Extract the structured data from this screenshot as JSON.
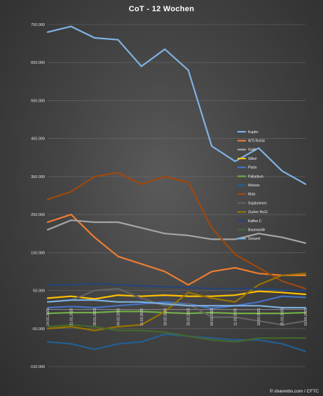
{
  "chart_data": {
    "type": "line",
    "title": "CoT - 12 Wochen",
    "xlabel": "",
    "ylabel": "",
    "ylim": [
      -150000,
      750000
    ],
    "yticks": [
      "-150.000",
      "-50.000",
      "50.000",
      "150.000",
      "250.000",
      "350.000",
      "450.000",
      "550.000",
      "650.000",
      "750.000"
    ],
    "ytick_values": [
      -150000,
      -50000,
      50000,
      150000,
      250000,
      350000,
      450000,
      550000,
      650000,
      750000
    ],
    "grid": true,
    "legend_position": "right",
    "categories": [
      "14.01.2025",
      "21.01.2025",
      "28.01.2025",
      "04.02.2025",
      "11.02.2025",
      "18.02.2025",
      "25.02.2025",
      "04.03.2025",
      "11.03.2025",
      "18.03.2025",
      "25.03.2025",
      "01.04.2025"
    ],
    "series": [
      {
        "name": "Kupfer",
        "color": "#7fb2e5",
        "values": [
          730000,
          745000,
          715000,
          710000,
          640000,
          685000,
          630000,
          430000,
          390000,
          425000,
          365000,
          330000
        ]
      },
      {
        "name": "WTI Rohöl",
        "color": "#ed7d31",
        "values": [
          230000,
          250000,
          190000,
          140000,
          120000,
          100000,
          65000,
          100000,
          110000,
          95000,
          90000,
          90000
        ]
      },
      {
        "name": "Gold",
        "color": "#a5a5a5",
        "values": [
          210000,
          235000,
          230000,
          230000,
          215000,
          200000,
          195000,
          185000,
          185000,
          200000,
          190000,
          175000
        ]
      },
      {
        "name": "Silber",
        "color": "#ffc000",
        "values": [
          30000,
          35000,
          28000,
          38000,
          35000,
          38000,
          35000,
          35000,
          38000,
          48000,
          45000,
          40000
        ]
      },
      {
        "name": "Platin",
        "color": "#4472c4",
        "values": [
          5000,
          8000,
          5000,
          10000,
          15000,
          20000,
          15000,
          3000,
          10000,
          20000,
          35000,
          32000
        ]
      },
      {
        "name": "Palladium",
        "color": "#70ad47",
        "values": [
          -10000,
          -8000,
          -8000,
          -5000,
          -5000,
          -8000,
          -10000,
          -8000,
          -10000,
          -10000,
          -10000,
          -8000
        ]
      },
      {
        "name": "Weizen",
        "color": "#255e91",
        "values": [
          -85000,
          -90000,
          -105000,
          -90000,
          -85000,
          -65000,
          -70000,
          -75000,
          -80000,
          -80000,
          -90000,
          -110000
        ]
      },
      {
        "name": "Mais",
        "color": "#9e480e",
        "values": [
          290000,
          310000,
          350000,
          360000,
          330000,
          350000,
          335000,
          215000,
          145000,
          110000,
          75000,
          55000
        ]
      },
      {
        "name": "Sojabohnen",
        "color": "#636363",
        "values": [
          20000,
          25000,
          50000,
          55000,
          30000,
          10000,
          15000,
          -20000,
          -20000,
          -30000,
          -40000,
          -30000
        ]
      },
      {
        "name": "Zucker No11",
        "color": "#997300",
        "values": [
          -50000,
          -45000,
          -55000,
          -45000,
          -40000,
          -5000,
          45000,
          30000,
          20000,
          65000,
          90000,
          95000
        ]
      },
      {
        "name": "Kaffee C",
        "color": "#264478",
        "values": [
          65000,
          65000,
          68000,
          65000,
          62000,
          60000,
          58000,
          55000,
          55000,
          55000,
          52000,
          50000
        ]
      },
      {
        "name": "Baumwolle",
        "color": "#43682b",
        "values": [
          -45000,
          -40000,
          -45000,
          -55000,
          -55000,
          -60000,
          -70000,
          -80000,
          -85000,
          -75000,
          -75000,
          -75000
        ]
      },
      {
        "name": "Gesamt",
        "color": "#7cafdd",
        "values": [
          20000,
          25000,
          25000,
          20000,
          20000,
          15000,
          10000,
          10000,
          10000,
          10000,
          5000,
          5000
        ]
      }
    ]
  },
  "credit": "© sharenbs.com / CFTC"
}
